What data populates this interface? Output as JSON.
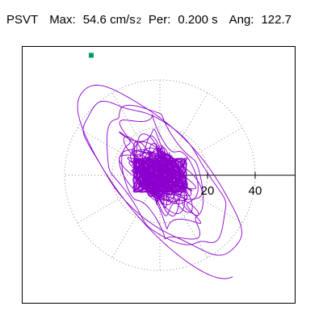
{
  "header": {
    "label": "PSVT",
    "max_label": "Max:",
    "max_value": "54.6 cm/s",
    "max_unit_exponent": "2",
    "per_label": "Per:",
    "per_value": "0.200 s",
    "ang_label": "Ang:",
    "ang_value": "122.7"
  },
  "chart_data": {
    "type": "polar-orbit",
    "radial_tick_labels": [
      "20",
      "40"
    ],
    "radial_rings": [
      20,
      40
    ],
    "max_radius": 54.6,
    "orientation_angle_deg": 122.7,
    "grid": "dotted",
    "colors": {
      "trace": "#8b00cc",
      "marker": "#009966",
      "grid": "#888888",
      "axis": "#000000"
    }
  }
}
